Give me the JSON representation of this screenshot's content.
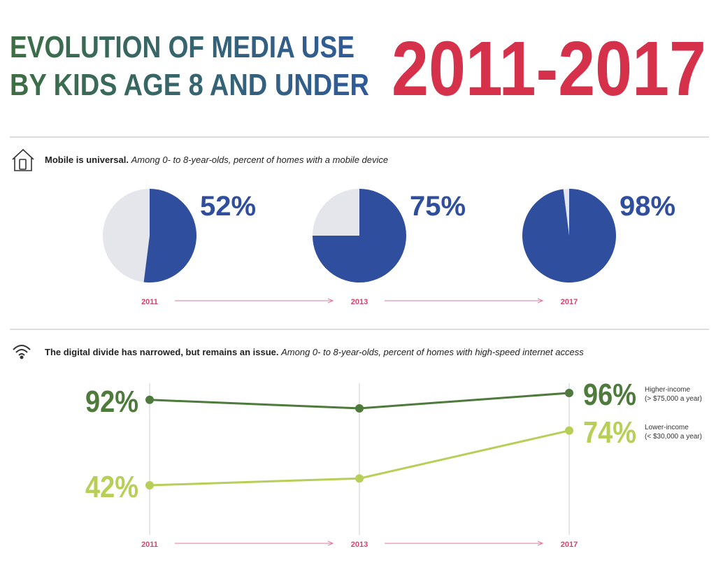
{
  "header": {
    "title_line1": "EVOLUTION OF MEDIA USE",
    "title_line2": "BY KIDS AGE 8 AND UNDER",
    "years": "2011-2017"
  },
  "chart_data": [
    {
      "type": "pie",
      "title": "Mobile is universal.",
      "subtitle": "Among 0- to 8-year-olds, percent of homes with a mobile device",
      "categories": [
        "2011",
        "2013",
        "2017"
      ],
      "values": [
        52,
        75,
        98
      ],
      "value_labels": [
        "52%",
        "75%",
        "98%"
      ],
      "color": "#2f4f9e",
      "rest_color": "#e4e6ec"
    },
    {
      "type": "line",
      "title": "The digital divide has narrowed, but remains an issue.",
      "subtitle": "Among 0- to 8-year-olds, percent of homes with high-speed internet access",
      "categories": [
        "2011",
        "2013",
        "2017"
      ],
      "ylim": [
        15,
        105
      ],
      "series": [
        {
          "name": "Higher-income",
          "detail": "(> $75,000 a year)",
          "color": "#4e7a3c",
          "values": [
            92,
            87,
            96
          ],
          "value_labels": [
            "92%",
            null,
            "96%"
          ]
        },
        {
          "name": "Lower-income",
          "detail": "(< $30,000 a year)",
          "color": "#b7cf57",
          "values": [
            42,
            46,
            74
          ],
          "value_labels": [
            "42%",
            null,
            "74%"
          ]
        }
      ]
    }
  ]
}
